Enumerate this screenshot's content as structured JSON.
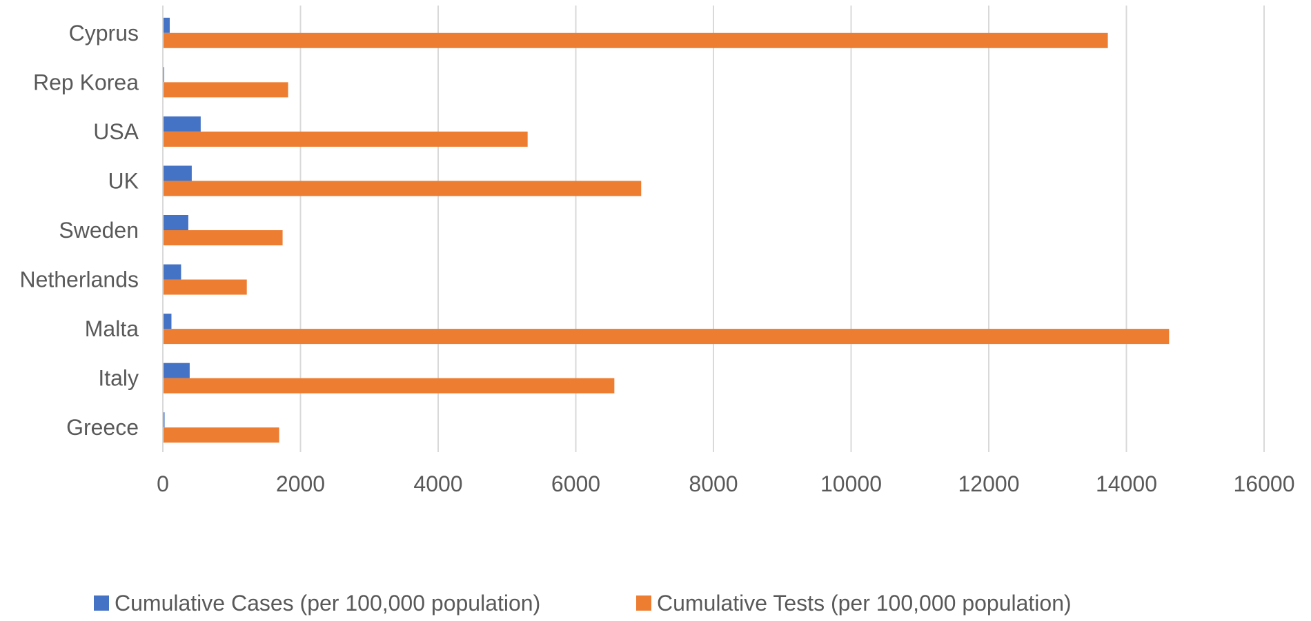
{
  "chart_data": {
    "type": "bar",
    "orientation": "horizontal",
    "categories": [
      "Cyprus",
      "Rep Korea",
      "USA",
      "UK",
      "Sweden",
      "Netherlands",
      "Malta",
      "Italy",
      "Greece"
    ],
    "series": [
      {
        "name": "Cumulative Cases (per 100,000 population)",
        "color": "#4472C4",
        "values": [
          100,
          20,
          550,
          420,
          370,
          265,
          125,
          390,
          25
        ]
      },
      {
        "name": "Cumulative Tests (per 100,000 population)",
        "color": "#ED7D31",
        "values": [
          13730,
          1820,
          5300,
          6950,
          1740,
          1220,
          14620,
          6560,
          1690
        ]
      }
    ],
    "xlim": [
      0,
      16000
    ],
    "x_ticks": [
      "0",
      "2000",
      "4000",
      "6000",
      "8000",
      "10000",
      "12000",
      "14000",
      "16000"
    ],
    "grid": true,
    "legend_position": "bottom",
    "title": "",
    "xlabel": "",
    "ylabel": ""
  }
}
